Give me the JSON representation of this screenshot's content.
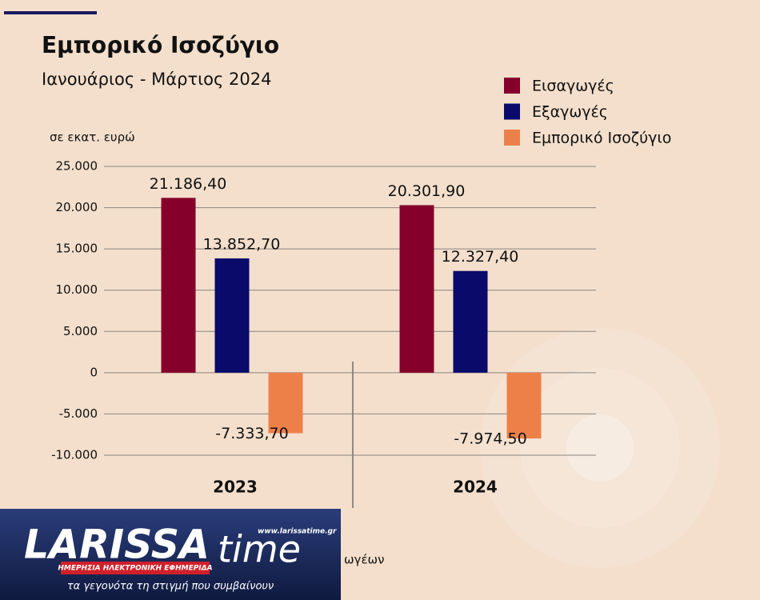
{
  "chart_data": {
    "type": "bar",
    "title": "Εμπορικό Ισοζύγιο",
    "subtitle": "Ιανουάριος - Μάρτιος 2024",
    "y_label": "σε εκατ. ευρώ",
    "categories": [
      "2023",
      "2024"
    ],
    "series": [
      {
        "name": "Εισαγωγές",
        "color": "#85002a",
        "values": [
          21186.4,
          20301.9
        ],
        "value_labels": [
          "21.186,40",
          "20.301,90"
        ]
      },
      {
        "name": "Εξαγωγές",
        "color": "#0a0a6b",
        "values": [
          13852.7,
          12327.4
        ],
        "value_labels": [
          "13.852,70",
          "12.327,40"
        ]
      },
      {
        "name": "Εμπορικό Ισοζύγιο",
        "color": "#ed8049",
        "values": [
          -7333.7,
          -7974.5
        ],
        "value_labels": [
          "-7.333,70",
          "-7.974,50"
        ]
      }
    ],
    "ylim": [
      -10000,
      25000
    ],
    "yticks": [
      {
        "value": 25000,
        "label": "25.000"
      },
      {
        "value": 20000,
        "label": "20.000"
      },
      {
        "value": 15000,
        "label": "15.000"
      },
      {
        "value": 10000,
        "label": "10.000"
      },
      {
        "value": 5000,
        "label": "5.000"
      },
      0,
      {
        "value": -5000,
        "label": "-5.000"
      },
      {
        "value": -10000,
        "label": "-10.000"
      }
    ],
    "grid": true,
    "legend": "top-right"
  },
  "footnote": "ωγέων",
  "logo": {
    "name_part1": "LARISSA",
    "name_part2": "time",
    "url": "www.larissatime.gr",
    "tagline": "ΗΜΕΡΗΣΙΑ ΗΛΕΚΤΡΟΝΙΚΗ ΕΦΗΜΕΡΙΔΑ",
    "slogan": "τα γεγονότα τη στιγμή που συμβαίνουν"
  }
}
